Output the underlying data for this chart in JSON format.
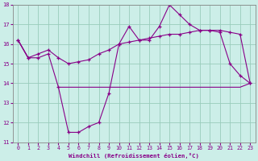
{
  "x": [
    0,
    1,
    2,
    3,
    4,
    5,
    6,
    7,
    8,
    9,
    10,
    11,
    12,
    13,
    14,
    15,
    16,
    17,
    18,
    19,
    20,
    21,
    22,
    23
  ],
  "line1": [
    16.2,
    15.3,
    15.3,
    15.5,
    13.8,
    11.5,
    11.5,
    11.8,
    12.0,
    13.5,
    16.0,
    16.9,
    16.2,
    16.2,
    16.9,
    18.0,
    17.5,
    17.0,
    16.7,
    16.7,
    16.6,
    15.0,
    14.4,
    14.0
  ],
  "line2": [
    16.2,
    15.3,
    15.5,
    15.7,
    15.3,
    15.0,
    15.1,
    15.2,
    15.5,
    15.7,
    16.0,
    16.1,
    16.2,
    16.3,
    16.4,
    16.5,
    16.5,
    16.6,
    16.7,
    16.7,
    16.7,
    16.6,
    16.5,
    14.0
  ],
  "line3": [
    16.2,
    15.3,
    null,
    null,
    13.8,
    13.8,
    13.8,
    13.8,
    13.8,
    13.8,
    13.8,
    13.8,
    13.8,
    13.8,
    13.8,
    13.8,
    13.8,
    13.8,
    13.8,
    13.8,
    13.8,
    13.8,
    13.8,
    14.0
  ],
  "line_color": "#880088",
  "bg_color": "#cceee8",
  "grid_color": "#99ccbb",
  "xlabel": "Windchill (Refroidissement éolien,°C)",
  "ylim": [
    11,
    18
  ],
  "xlim": [
    -0.5,
    23.5
  ],
  "yticks": [
    11,
    12,
    13,
    14,
    15,
    16,
    17,
    18
  ],
  "xticks": [
    0,
    1,
    2,
    3,
    4,
    5,
    6,
    7,
    8,
    9,
    10,
    11,
    12,
    13,
    14,
    15,
    16,
    17,
    18,
    19,
    20,
    21,
    22,
    23
  ]
}
